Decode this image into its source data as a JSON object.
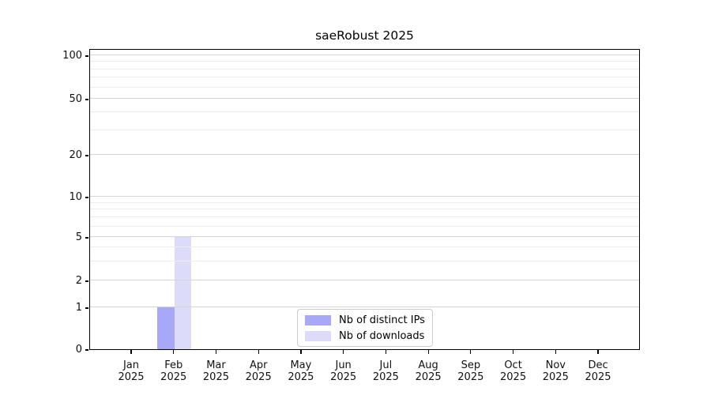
{
  "page": {
    "background": "#ffffff"
  },
  "chart_data": {
    "type": "bar",
    "title": "saeRobust 2025",
    "categories": [
      "Jan",
      "Feb",
      "Mar",
      "Apr",
      "May",
      "Jun",
      "Jul",
      "Aug",
      "Sep",
      "Oct",
      "Nov",
      "Dec"
    ],
    "category_year": "2025",
    "series": [
      {
        "name": "Nb of distinct IPs",
        "color": "#a8a8f8",
        "values": [
          0,
          1,
          0,
          0,
          0,
          0,
          0,
          0,
          0,
          0,
          0,
          0
        ]
      },
      {
        "name": "Nb of downloads",
        "color": "#dcdcfa",
        "values": [
          0,
          5,
          0,
          0,
          0,
          0,
          0,
          0,
          0,
          0,
          0,
          0
        ]
      }
    ],
    "xlabel": "",
    "ylabel": "",
    "y_ticks": [
      0,
      1,
      2,
      5,
      10,
      20,
      50,
      100
    ],
    "y_minor_gridlines": [
      3,
      4,
      6,
      7,
      8,
      9,
      30,
      40,
      60,
      70,
      80,
      90
    ],
    "ylim": [
      0,
      115
    ],
    "y_scale": "log-like (compressed near zero, ticks 0/1/2/5/10/20/50/100)",
    "grid": "horizontal, major and minor, drawn over bars",
    "legend_position": "bottom-center inside plot",
    "colors": {
      "axis": "#000000",
      "major_gridline": "#d4d4d4",
      "minor_gridline": "#ededed",
      "legend_border": "#cccccc"
    }
  }
}
